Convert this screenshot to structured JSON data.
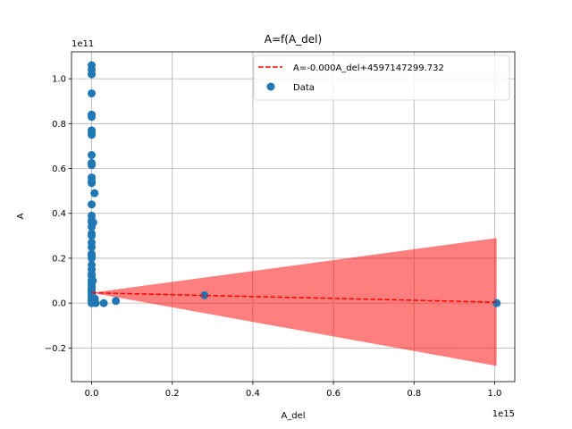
{
  "chart_data": {
    "type": "scatter",
    "title": "A=f(A_del)",
    "xlabel": "A_del",
    "ylabel": "A",
    "x_offset_label": "1e15",
    "y_offset_label": "1e11",
    "x_scale_exp": 15,
    "y_scale_exp": 11,
    "xlim": [
      -0.05,
      1.05
    ],
    "ylim": [
      -0.35,
      1.12
    ],
    "x_ticks": [
      0.0,
      0.2,
      0.4,
      0.6,
      0.8,
      1.0
    ],
    "x_tick_labels": [
      "0.0",
      "0.2",
      "0.4",
      "0.6",
      "0.8",
      "1.0"
    ],
    "y_ticks": [
      -0.2,
      0.0,
      0.2,
      0.4,
      0.6,
      0.8,
      1.0
    ],
    "y_tick_labels": [
      "−0.2",
      "0.0",
      "0.2",
      "0.4",
      "0.6",
      "0.8",
      "1.0"
    ],
    "grid": true,
    "legend_position": "top-right",
    "colors": {
      "data": "#1f77b4",
      "fit_line": "#ff0000",
      "confidence_band": "#ff0000"
    },
    "series": [
      {
        "name": "Data",
        "kind": "scatter",
        "x": [
          0.0,
          0.0,
          0.0,
          0.0,
          0.0,
          0.0,
          0.0,
          0.0,
          0.0,
          0.0,
          0.0,
          0.0,
          0.0,
          0.0,
          0.0,
          0.0,
          0.0,
          0.0,
          0.0,
          0.0,
          0.0,
          0.0,
          0.0,
          0.0,
          0.0,
          0.0,
          0.0,
          0.0,
          0.0,
          0.0,
          0.0,
          0.0,
          0.0,
          0.0,
          0.0,
          0.0,
          0.0,
          0.0,
          0.0,
          0.0,
          0.0,
          0.0,
          0.007,
          0.004,
          0.003,
          0.008,
          0.01,
          0.03,
          0.06,
          0.28,
          1.005
        ],
        "y": [
          1.06,
          1.04,
          1.02,
          0.935,
          0.84,
          0.83,
          0.77,
          0.76,
          0.75,
          0.66,
          0.625,
          0.615,
          0.56,
          0.545,
          0.535,
          0.44,
          0.39,
          0.37,
          0.36,
          0.34,
          0.31,
          0.3,
          0.27,
          0.25,
          0.22,
          0.21,
          0.2,
          0.17,
          0.15,
          0.13,
          0.12,
          0.1,
          0.09,
          0.08,
          0.07,
          0.06,
          0.05,
          0.04,
          0.03,
          0.02,
          0.01,
          0.0,
          0.49,
          0.36,
          0.1,
          0.02,
          0.0,
          0.0,
          0.01,
          0.035,
          0.0
        ]
      },
      {
        "name": "A=-0.000A_del+4597147299.732",
        "kind": "line",
        "x": [
          0.0,
          1.005
        ],
        "y": [
          0.046,
          0.004
        ]
      }
    ],
    "confidence_band": {
      "x": [
        0.0,
        1.005
      ],
      "upper": [
        0.046,
        0.29
      ],
      "lower": [
        0.046,
        -0.28
      ]
    }
  }
}
